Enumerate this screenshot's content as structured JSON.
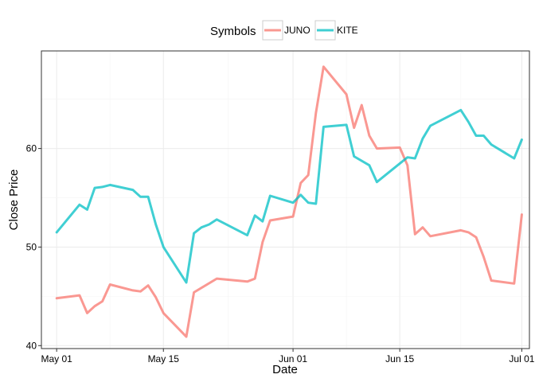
{
  "chart_data": {
    "type": "line",
    "xlabel": "Date",
    "ylabel": "Close Price",
    "xlim": [
      "2015-04-29",
      "2015-07-02"
    ],
    "ylim": [
      39.7,
      69.9
    ],
    "x_ticks": [
      {
        "date": "2015-05-01",
        "label": "May 01"
      },
      {
        "date": "2015-05-15",
        "label": "May 15"
      },
      {
        "date": "2015-06-01",
        "label": "Jun 01"
      },
      {
        "date": "2015-06-15",
        "label": "Jun 15"
      },
      {
        "date": "2015-07-01",
        "label": "Jul 01"
      }
    ],
    "y_ticks": [
      40,
      50,
      60
    ],
    "grid": true,
    "legend": {
      "title": "Symbols",
      "position": "top"
    },
    "series": [
      {
        "name": "JUNO",
        "color": "#F8766D",
        "points": [
          [
            "2015-05-01",
            44.8
          ],
          [
            "2015-05-04",
            45.1
          ],
          [
            "2015-05-05",
            43.3
          ],
          [
            "2015-05-06",
            44.0
          ],
          [
            "2015-05-07",
            44.5
          ],
          [
            "2015-05-08",
            46.2
          ],
          [
            "2015-05-11",
            45.6
          ],
          [
            "2015-05-12",
            45.5
          ],
          [
            "2015-05-13",
            46.1
          ],
          [
            "2015-05-14",
            44.9
          ],
          [
            "2015-05-15",
            43.3
          ],
          [
            "2015-05-18",
            40.9
          ],
          [
            "2015-05-19",
            45.4
          ],
          [
            "2015-05-22",
            46.8
          ],
          [
            "2015-05-26",
            46.5
          ],
          [
            "2015-05-27",
            46.8
          ],
          [
            "2015-05-28",
            50.5
          ],
          [
            "2015-05-29",
            52.7
          ],
          [
            "2015-06-01",
            53.1
          ],
          [
            "2015-06-02",
            56.5
          ],
          [
            "2015-06-03",
            57.3
          ],
          [
            "2015-06-04",
            63.6
          ],
          [
            "2015-06-05",
            68.3
          ],
          [
            "2015-06-08",
            65.5
          ],
          [
            "2015-06-09",
            62.1
          ],
          [
            "2015-06-10",
            64.4
          ],
          [
            "2015-06-11",
            61.3
          ],
          [
            "2015-06-12",
            60.0
          ],
          [
            "2015-06-15",
            60.1
          ],
          [
            "2015-06-16",
            58.3
          ],
          [
            "2015-06-17",
            51.3
          ],
          [
            "2015-06-18",
            52.0
          ],
          [
            "2015-06-19",
            51.1
          ],
          [
            "2015-06-23",
            51.7
          ],
          [
            "2015-06-24",
            51.5
          ],
          [
            "2015-06-25",
            51.0
          ],
          [
            "2015-06-26",
            49.0
          ],
          [
            "2015-06-27",
            46.6
          ],
          [
            "2015-06-30",
            46.3
          ],
          [
            "2015-07-01",
            53.3
          ]
        ]
      },
      {
        "name": "KITE",
        "color": "#00BFC4",
        "points": [
          [
            "2015-05-01",
            51.5
          ],
          [
            "2015-05-04",
            54.3
          ],
          [
            "2015-05-05",
            53.8
          ],
          [
            "2015-05-06",
            56.0
          ],
          [
            "2015-05-07",
            56.1
          ],
          [
            "2015-05-08",
            56.3
          ],
          [
            "2015-05-11",
            55.8
          ],
          [
            "2015-05-12",
            55.1
          ],
          [
            "2015-05-13",
            55.1
          ],
          [
            "2015-05-14",
            52.3
          ],
          [
            "2015-05-15",
            50.0
          ],
          [
            "2015-05-18",
            46.4
          ],
          [
            "2015-05-19",
            51.4
          ],
          [
            "2015-05-20",
            52.0
          ],
          [
            "2015-05-21",
            52.3
          ],
          [
            "2015-05-22",
            52.8
          ],
          [
            "2015-05-26",
            51.2
          ],
          [
            "2015-05-27",
            53.2
          ],
          [
            "2015-05-28",
            52.6
          ],
          [
            "2015-05-29",
            55.2
          ],
          [
            "2015-06-01",
            54.5
          ],
          [
            "2015-06-02",
            55.3
          ],
          [
            "2015-06-03",
            54.5
          ],
          [
            "2015-06-04",
            54.4
          ],
          [
            "2015-06-05",
            62.2
          ],
          [
            "2015-06-08",
            62.4
          ],
          [
            "2015-06-09",
            59.2
          ],
          [
            "2015-06-11",
            58.3
          ],
          [
            "2015-06-12",
            56.6
          ],
          [
            "2015-06-16",
            59.1
          ],
          [
            "2015-06-17",
            59.0
          ],
          [
            "2015-06-18",
            61.0
          ],
          [
            "2015-06-19",
            62.3
          ],
          [
            "2015-06-23",
            63.9
          ],
          [
            "2015-06-24",
            62.7
          ],
          [
            "2015-06-25",
            61.3
          ],
          [
            "2015-06-26",
            61.3
          ],
          [
            "2015-06-27",
            60.4
          ],
          [
            "2015-06-30",
            59.0
          ],
          [
            "2015-07-01",
            60.9
          ]
        ]
      }
    ]
  }
}
